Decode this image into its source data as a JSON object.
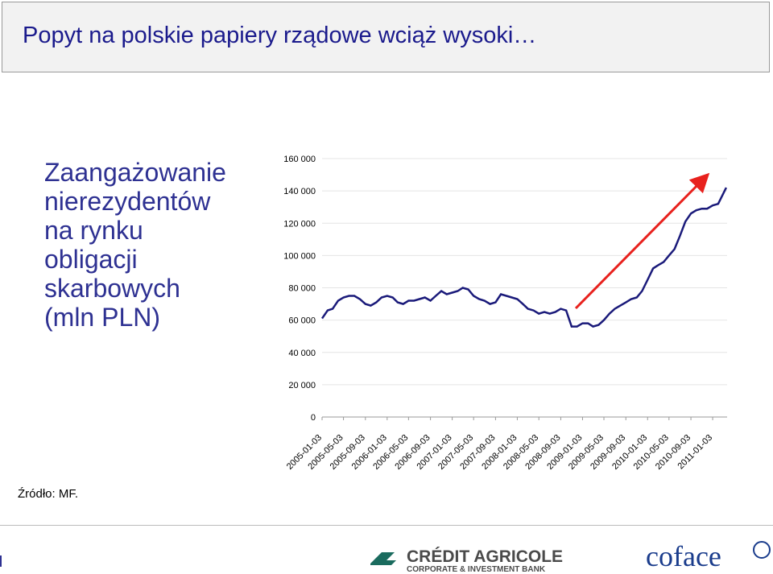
{
  "header": {
    "title": "Popyt na polskie papiery rządowe wciąż wysoki…"
  },
  "description": [
    "Zaangażowanie",
    "nierezydentów",
    "na rynku",
    "obligacji",
    "skarbowych",
    "(mln PLN)"
  ],
  "source": "Źródło: MF.",
  "footer": {
    "brand_main": "CRÉDIT AGRICOLE",
    "brand_sub": "CORPORATE & INVESTMENT BANK",
    "brand_2": "coface"
  },
  "chart_data": {
    "type": "line",
    "color": "#1a1a7a",
    "grid": true,
    "x": [
      "2005-01-03",
      "2005-02-03",
      "2005-03-03",
      "2005-04-03",
      "2005-05-03",
      "2005-06-03",
      "2005-07-03",
      "2005-08-03",
      "2005-09-03",
      "2005-10-03",
      "2005-11-03",
      "2005-12-03",
      "2006-01-03",
      "2006-02-03",
      "2006-03-03",
      "2006-04-03",
      "2006-05-03",
      "2006-06-03",
      "2006-07-03",
      "2006-08-03",
      "2006-09-03",
      "2006-10-03",
      "2006-11-03",
      "2006-12-03",
      "2007-01-03",
      "2007-02-03",
      "2007-03-03",
      "2007-04-03",
      "2007-05-03",
      "2007-06-03",
      "2007-07-03",
      "2007-08-03",
      "2007-09-03",
      "2007-10-03",
      "2007-11-03",
      "2007-12-03",
      "2008-01-03",
      "2008-02-03",
      "2008-03-03",
      "2008-04-03",
      "2008-05-03",
      "2008-06-03",
      "2008-07-03",
      "2008-08-03",
      "2008-09-03",
      "2008-10-03",
      "2008-11-03",
      "2008-12-03",
      "2009-01-03",
      "2009-02-03",
      "2009-03-03",
      "2009-04-03",
      "2009-05-03",
      "2009-06-03",
      "2009-07-03",
      "2009-08-03",
      "2009-09-03",
      "2009-10-03",
      "2009-11-03",
      "2009-12-03",
      "2010-01-03",
      "2010-02-03",
      "2010-03-03",
      "2010-04-03",
      "2010-05-03",
      "2010-06-03",
      "2010-07-03",
      "2010-08-03",
      "2010-09-03",
      "2010-10-03",
      "2010-11-03",
      "2010-12-03",
      "2011-01-03",
      "2011-02-03",
      "2011-03-20"
    ],
    "values": [
      61000,
      66000,
      67000,
      72000,
      74000,
      75000,
      75000,
      73000,
      70000,
      69000,
      71000,
      74000,
      75000,
      74000,
      71000,
      70000,
      72000,
      72000,
      73000,
      74000,
      72000,
      75000,
      78000,
      76000,
      77000,
      78000,
      80000,
      79000,
      75000,
      73000,
      72000,
      70000,
      71000,
      76000,
      75000,
      74000,
      73000,
      70000,
      67000,
      66000,
      64000,
      65000,
      64000,
      65000,
      67000,
      66000,
      56000,
      56000,
      58000,
      58000,
      56000,
      57000,
      60000,
      64000,
      67000,
      69000,
      71000,
      73000,
      74000,
      78000,
      85000,
      92000,
      94000,
      96000,
      100000,
      104000,
      112000,
      121000,
      126000,
      128000,
      129000,
      129000,
      131000,
      132000,
      142000
    ],
    "xlim": [
      "2005-01-03",
      "2011-03-25"
    ],
    "xticks": [
      "2005-01-03",
      "2005-05-03",
      "2005-09-03",
      "2006-01-03",
      "2006-05-03",
      "2006-09-03",
      "2007-01-03",
      "2007-05-03",
      "2007-09-03",
      "2008-01-03",
      "2008-05-03",
      "2008-09-03",
      "2009-01-03",
      "2009-05-03",
      "2009-09-03",
      "2010-01-03",
      "2010-05-03",
      "2010-09-03",
      "2011-01-03"
    ],
    "ylim": [
      0,
      160000
    ],
    "yticks": [
      0,
      {
        "value": 20000,
        "label": "20 000"
      },
      {
        "value": 40000,
        "label": "40 000"
      },
      {
        "value": 60000,
        "label": "60 000"
      },
      {
        "value": 80000,
        "label": "80 000"
      },
      {
        "value": 100000,
        "label": "100 000"
      },
      {
        "value": 120000,
        "label": "120 000"
      },
      {
        "value": 140000,
        "label": "140 000"
      },
      {
        "value": 160000,
        "label": "160 000"
      }
    ]
  }
}
